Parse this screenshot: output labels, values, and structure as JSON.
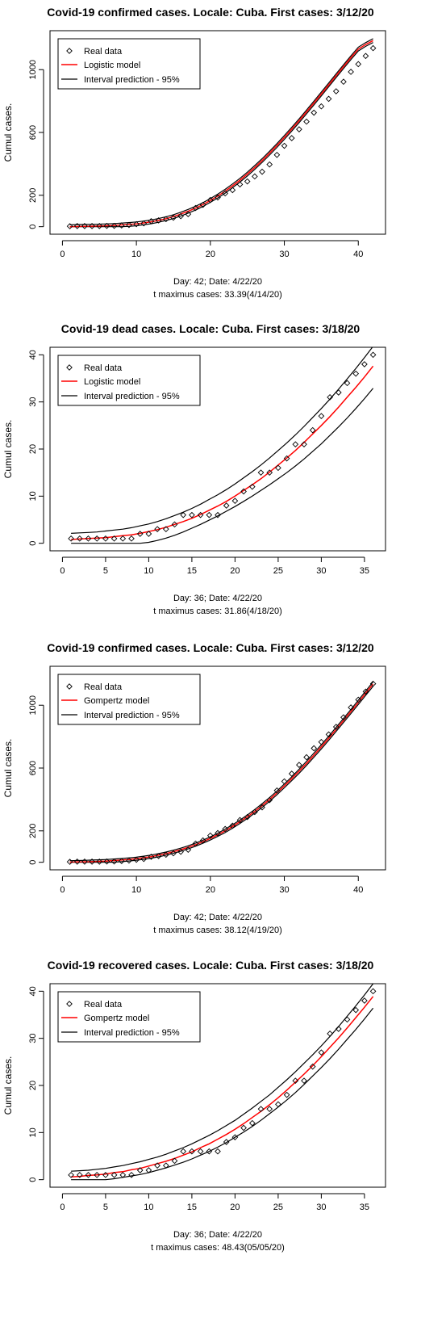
{
  "colors": {
    "model": "#ff0000",
    "interval": "#000000",
    "points": "#000000"
  },
  "chart_data": [
    {
      "type": "line",
      "title": "Covid-19 confirmed cases. Locale: Cuba. First cases: 3/12/20",
      "ylabel": "Cumul cases.",
      "xlim": [
        0,
        42
      ],
      "ylim": [
        0,
        1200
      ],
      "x_ticks": [
        0,
        10,
        20,
        30,
        40
      ],
      "y_ticks": [
        0,
        200,
        600,
        1000
      ],
      "legend": {
        "position": "top-left",
        "entries": [
          "Real data",
          "Logistic model",
          "Interval prediction - 95%"
        ]
      },
      "footer": [
        "Day: 42; Date: 4/22/20",
        "t maximus cases: 33.39(4/14/20)"
      ],
      "x": [
        1,
        2,
        3,
        4,
        5,
        6,
        7,
        8,
        9,
        10,
        11,
        12,
        13,
        14,
        15,
        16,
        17,
        18,
        19,
        20,
        21,
        22,
        23,
        24,
        25,
        26,
        27,
        28,
        29,
        30,
        31,
        32,
        33,
        34,
        35,
        36,
        37,
        38,
        39,
        40,
        41,
        42
      ],
      "series": [
        {
          "name": "Real data",
          "values": [
            3,
            4,
            4,
            4,
            4,
            5,
            5,
            8,
            11,
            16,
            21,
            35,
            40,
            48,
            57,
            67,
            80,
            119,
            139,
            170,
            186,
            212,
            233,
            269,
            288,
            320,
            350,
            396,
            457,
            515,
            564,
            620,
            669,
            726,
            766,
            814,
            862,
            923,
            986,
            1035,
            1087,
            1137
          ]
        },
        {
          "name": "Logistic model",
          "values": [
            0,
            1,
            2,
            3,
            4,
            6,
            8,
            11,
            14,
            18,
            24,
            31,
            40,
            51,
            64,
            80,
            98,
            118,
            141,
            167,
            195,
            226,
            260,
            296,
            335,
            377,
            421,
            468,
            517,
            568,
            621,
            675,
            731,
            787,
            845,
            903,
            961,
            1019,
            1076,
            1131,
            1160,
            1185
          ]
        },
        {
          "name": "Interval prediction - 95% (upper)",
          "values": [
            12,
            13,
            14,
            15,
            16,
            18,
            20,
            23,
            26,
            30,
            36,
            43,
            52,
            63,
            76,
            92,
            110,
            130,
            153,
            179,
            207,
            238,
            272,
            308,
            347,
            389,
            433,
            480,
            529,
            580,
            633,
            687,
            743,
            799,
            857,
            915,
            973,
            1031,
            1088,
            1143,
            1172,
            1197
          ]
        },
        {
          "name": "Interval prediction - 95% (lower)",
          "values": [
            0,
            0,
            0,
            0,
            0,
            0,
            0,
            0,
            2,
            6,
            12,
            19,
            28,
            39,
            52,
            68,
            86,
            106,
            129,
            155,
            183,
            214,
            248,
            284,
            323,
            365,
            409,
            456,
            505,
            556,
            609,
            663,
            719,
            775,
            833,
            891,
            949,
            1007,
            1064,
            1119,
            1148,
            1173
          ]
        }
      ]
    },
    {
      "type": "line",
      "title": "Covid-19 dead cases. Locale: Cuba. First cases: 3/18/20",
      "ylabel": "Cumul cases.",
      "xlim": [
        0,
        36
      ],
      "ylim": [
        0,
        40
      ],
      "x_ticks": [
        0,
        5,
        10,
        15,
        20,
        25,
        30,
        35
      ],
      "y_ticks": [
        0,
        10,
        20,
        30,
        40
      ],
      "legend": {
        "position": "top-left",
        "entries": [
          "Real data",
          "Logistic model",
          "Interval prediction - 95%"
        ]
      },
      "footer": [
        "Day: 36; Date: 4/22/20",
        "t maximus cases: 31.86(4/18/20)"
      ],
      "x": [
        1,
        2,
        3,
        4,
        5,
        6,
        7,
        8,
        9,
        10,
        11,
        12,
        13,
        14,
        15,
        16,
        17,
        18,
        19,
        20,
        21,
        22,
        23,
        24,
        25,
        26,
        27,
        28,
        29,
        30,
        31,
        32,
        33,
        34,
        35,
        36
      ],
      "series": [
        {
          "name": "Real data",
          "values": [
            1,
            1,
            1,
            1,
            1,
            1,
            1,
            1,
            2,
            2,
            3,
            3,
            4,
            6,
            6,
            6,
            6,
            6,
            8,
            9,
            11,
            12,
            15,
            15,
            16,
            18,
            21,
            21,
            24,
            27,
            31,
            32,
            34,
            36,
            38,
            40
          ]
        },
        {
          "name": "Logistic model",
          "values": [
            0.8,
            0.9,
            1.0,
            1.1,
            1.2,
            1.4,
            1.6,
            1.8,
            2.1,
            2.5,
            2.9,
            3.4,
            4.0,
            4.6,
            5.3,
            6.1,
            7.0,
            7.9,
            8.9,
            10.0,
            11.2,
            12.4,
            13.7,
            15.1,
            16.6,
            18.1,
            19.7,
            21.4,
            23.2,
            25.0,
            26.9,
            28.9,
            31.0,
            33.1,
            35.3,
            37.6
          ]
        },
        {
          "name": "Interval prediction - 95% (upper)",
          "values": [
            2.1,
            2.2,
            2.3,
            2.4,
            2.6,
            2.8,
            3.0,
            3.3,
            3.7,
            4.1,
            4.6,
            5.2,
            5.9,
            6.6,
            7.4,
            8.3,
            9.3,
            10.3,
            11.4,
            12.6,
            13.9,
            15.2,
            16.6,
            18.1,
            19.7,
            21.3,
            23.0,
            24.8,
            26.7,
            28.6,
            30.6,
            32.7,
            34.9,
            37.1,
            39.4,
            41.8
          ]
        },
        {
          "name": "Interval prediction - 95% (lower)",
          "values": [
            0,
            0,
            0,
            0,
            0,
            0,
            0,
            0,
            0,
            0.2,
            0.6,
            1.1,
            1.7,
            2.4,
            3.2,
            4.0,
            4.9,
            5.8,
            6.8,
            7.8,
            8.9,
            10.0,
            11.2,
            12.4,
            13.7,
            15.0,
            16.4,
            17.9,
            19.5,
            21.1,
            22.9,
            24.7,
            26.6,
            28.6,
            30.7,
            32.9
          ]
        }
      ]
    },
    {
      "type": "line",
      "title": "Covid-19 confirmed cases. Locale: Cuba. First cases: 3/12/20",
      "ylabel": "Cumul cases.",
      "xlim": [
        0,
        42
      ],
      "ylim": [
        0,
        1200
      ],
      "x_ticks": [
        0,
        10,
        20,
        30,
        40
      ],
      "y_ticks": [
        0,
        200,
        600,
        1000
      ],
      "legend": {
        "position": "top-left",
        "entries": [
          "Real data",
          "Gompertz model",
          "Interval prediction - 95%"
        ]
      },
      "footer": [
        "Day: 42; Date: 4/22/20",
        "t maximus cases: 38.12(4/19/20)"
      ],
      "x": [
        1,
        2,
        3,
        4,
        5,
        6,
        7,
        8,
        9,
        10,
        11,
        12,
        13,
        14,
        15,
        16,
        17,
        18,
        19,
        20,
        21,
        22,
        23,
        24,
        25,
        26,
        27,
        28,
        29,
        30,
        31,
        32,
        33,
        34,
        35,
        36,
        37,
        38,
        39,
        40,
        41,
        42
      ],
      "series": [
        {
          "name": "Real data",
          "values": [
            3,
            4,
            4,
            4,
            4,
            5,
            5,
            8,
            11,
            16,
            21,
            35,
            40,
            48,
            57,
            67,
            80,
            119,
            139,
            170,
            186,
            212,
            233,
            269,
            288,
            320,
            350,
            396,
            457,
            515,
            564,
            620,
            669,
            726,
            766,
            814,
            862,
            923,
            986,
            1035,
            1087,
            1137
          ]
        },
        {
          "name": "Gompertz model",
          "values": [
            1,
            2,
            3,
            4,
            6,
            8,
            11,
            14,
            18,
            23,
            29,
            36,
            45,
            55,
            67,
            80,
            95,
            112,
            131,
            152,
            175,
            200,
            228,
            258,
            290,
            324,
            361,
            400,
            442,
            486,
            532,
            580,
            630,
            682,
            735,
            790,
            846,
            903,
            960,
            1018,
            1076,
            1135
          ]
        },
        {
          "name": "Interval prediction - 95% (upper)",
          "values": [
            10,
            11,
            12,
            14,
            16,
            18,
            21,
            24,
            28,
            33,
            39,
            46,
            55,
            65,
            77,
            90,
            105,
            122,
            141,
            162,
            185,
            211,
            239,
            269,
            301,
            336,
            373,
            412,
            454,
            498,
            544,
            593,
            643,
            695,
            748,
            803,
            859,
            916,
            973,
            1032,
            1090,
            1150
          ]
        },
        {
          "name": "Interval prediction - 95% (lower)",
          "values": [
            0,
            0,
            0,
            0,
            0,
            0,
            1,
            4,
            8,
            13,
            19,
            26,
            35,
            45,
            57,
            70,
            85,
            102,
            121,
            142,
            165,
            189,
            217,
            247,
            279,
            313,
            349,
            388,
            430,
            474,
            520,
            567,
            617,
            669,
            722,
            777,
            833,
            890,
            947,
            1005,
            1063,
            1121
          ]
        }
      ]
    },
    {
      "type": "line",
      "title": "Covid-19 recovered cases. Locale: Cuba. First cases: 3/18/20",
      "ylabel": "Cumul cases.",
      "xlim": [
        0,
        36
      ],
      "ylim": [
        0,
        40
      ],
      "x_ticks": [
        0,
        5,
        10,
        15,
        20,
        25,
        30,
        35
      ],
      "y_ticks": [
        0,
        10,
        20,
        30,
        40
      ],
      "legend": {
        "position": "top-left",
        "entries": [
          "Real data",
          "Gompertz model",
          "Interval prediction - 95%"
        ]
      },
      "footer": [
        "Day: 36; Date: 4/22/20",
        "t maximus cases: 48.43(05/05/20)"
      ],
      "x": [
        1,
        2,
        3,
        4,
        5,
        6,
        7,
        8,
        9,
        10,
        11,
        12,
        13,
        14,
        15,
        16,
        17,
        18,
        19,
        20,
        21,
        22,
        23,
        24,
        25,
        26,
        27,
        28,
        29,
        30,
        31,
        32,
        33,
        34,
        35,
        36
      ],
      "series": [
        {
          "name": "Real data",
          "values": [
            1,
            1,
            1,
            1,
            1,
            1,
            1,
            1,
            2,
            2,
            3,
            3,
            4,
            6,
            6,
            6,
            6,
            6,
            8,
            9,
            11,
            12,
            15,
            15,
            16,
            18,
            21,
            21,
            24,
            27,
            31,
            32,
            34,
            36,
            38,
            40
          ]
        },
        {
          "name": "Gompertz model",
          "values": [
            0.6,
            0.7,
            0.9,
            1.0,
            1.2,
            1.5,
            1.7,
            2.1,
            2.4,
            2.9,
            3.4,
            3.9,
            4.5,
            5.2,
            5.9,
            6.8,
            7.6,
            8.6,
            9.6,
            10.7,
            11.9,
            13.2,
            14.5,
            15.9,
            17.4,
            19.0,
            20.7,
            22.4,
            24.2,
            26.1,
            28.1,
            30.1,
            32.2,
            34.4,
            36.6,
            38.9
          ]
        },
        {
          "name": "Interval prediction - 95% (upper)",
          "values": [
            1.8,
            1.9,
            2.0,
            2.2,
            2.4,
            2.7,
            3.0,
            3.4,
            3.8,
            4.3,
            4.8,
            5.4,
            6.1,
            6.8,
            7.6,
            8.5,
            9.4,
            10.4,
            11.5,
            12.6,
            13.9,
            15.2,
            16.6,
            18.0,
            19.6,
            21.2,
            22.9,
            24.7,
            26.5,
            28.4,
            30.4,
            32.5,
            34.7,
            36.9,
            39.2,
            41.6
          ]
        },
        {
          "name": "Interval prediction - 95% (lower)",
          "values": [
            0,
            0,
            0,
            0,
            0,
            0.2,
            0.5,
            0.8,
            1.1,
            1.5,
            2.0,
            2.5,
            3.1,
            3.7,
            4.4,
            5.2,
            6.0,
            6.9,
            7.9,
            9.0,
            10.1,
            11.3,
            12.6,
            14.0,
            15.4,
            16.9,
            18.5,
            20.2,
            22.0,
            23.8,
            25.7,
            27.7,
            29.8,
            31.9,
            34.1,
            36.4
          ]
        }
      ]
    }
  ]
}
